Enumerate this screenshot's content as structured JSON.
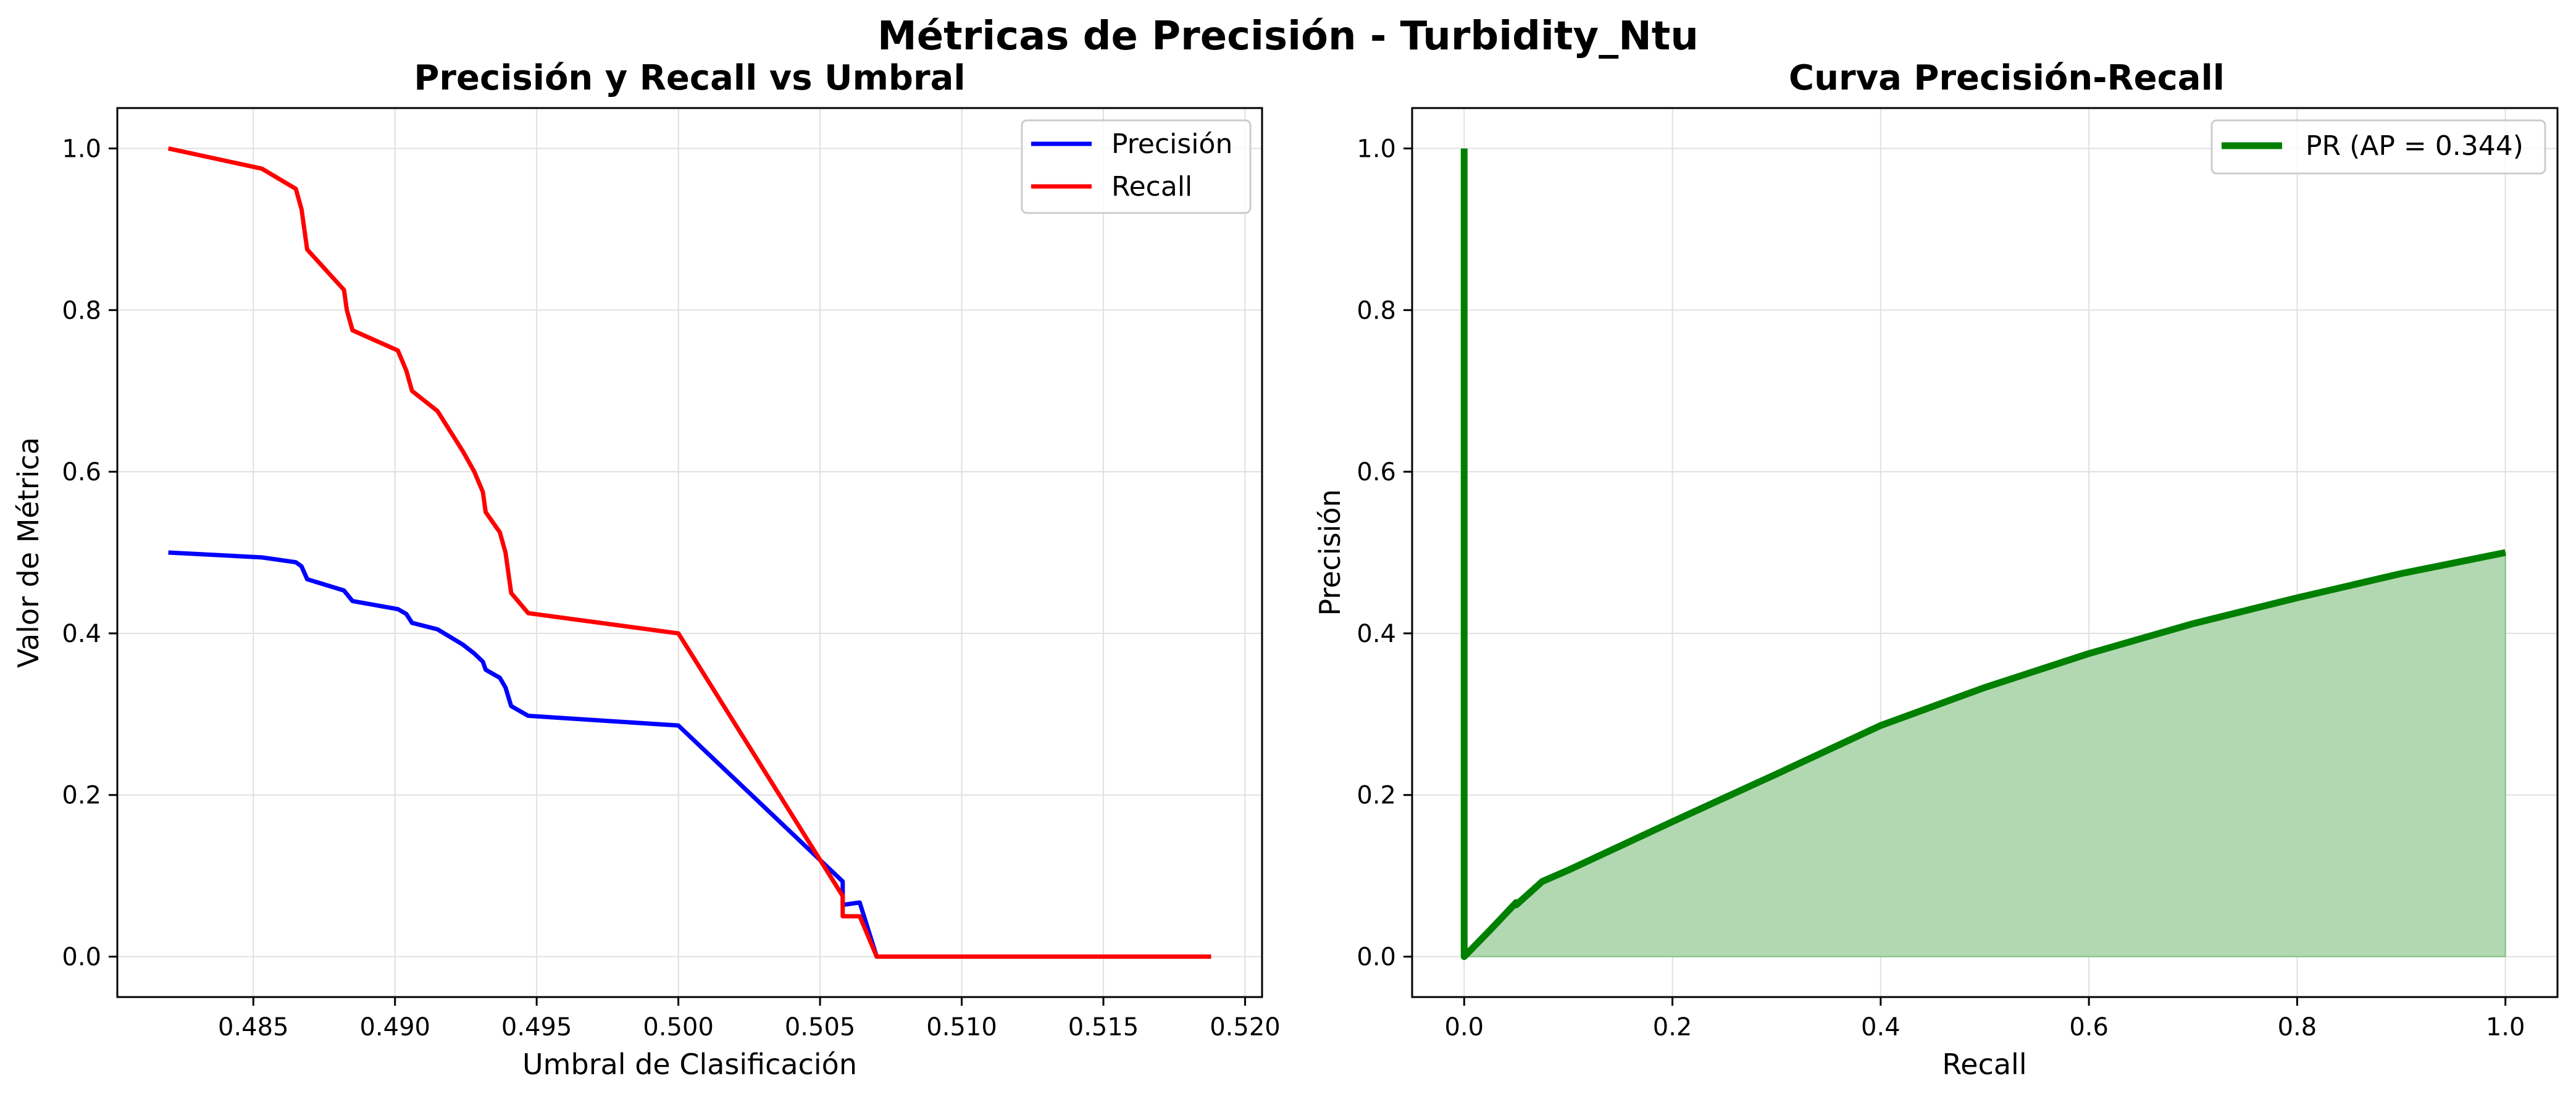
{
  "title": "Métricas de Precisión - Turbidity_Ntu",
  "chart_data": [
    {
      "type": "line",
      "title": "Precisión y Recall vs Umbral",
      "xlabel": "Umbral de Clasificación",
      "ylabel": "Valor de Métrica",
      "xlim": [
        0.4802,
        0.5206
      ],
      "ylim": [
        -0.05,
        1.05
      ],
      "xticks": [
        0.485,
        0.49,
        0.495,
        0.5,
        0.505,
        0.51,
        0.515,
        0.52
      ],
      "xtick_labels": [
        "0.485",
        "0.490",
        "0.495",
        "0.500",
        "0.505",
        "0.510",
        "0.515",
        "0.520"
      ],
      "yticks": [
        0.0,
        0.2,
        0.4,
        0.6,
        0.8,
        1.0
      ],
      "ytick_labels": [
        "0.0",
        "0.2",
        "0.4",
        "0.6",
        "0.8",
        "1.0"
      ],
      "grid": true,
      "legend": "top-right",
      "series": [
        {
          "name": "Precisión",
          "color": "#0000ff",
          "points": [
            [
              0.482,
              0.5
            ],
            [
              0.4853,
              0.494
            ],
            [
              0.4865,
              0.488
            ],
            [
              0.4867,
              0.483
            ],
            [
              0.4869,
              0.467
            ],
            [
              0.4882,
              0.453
            ],
            [
              0.4885,
              0.44
            ],
            [
              0.4901,
              0.43
            ],
            [
              0.4904,
              0.424
            ],
            [
              0.4906,
              0.413
            ],
            [
              0.4915,
              0.405
            ],
            [
              0.4924,
              0.386
            ],
            [
              0.4928,
              0.375
            ],
            [
              0.4931,
              0.365
            ],
            [
              0.4932,
              0.355
            ],
            [
              0.4937,
              0.345
            ],
            [
              0.4939,
              0.333
            ],
            [
              0.4941,
              0.31
            ],
            [
              0.4947,
              0.298
            ],
            [
              0.5,
              0.286
            ],
            [
              0.5058,
              0.093
            ],
            [
              0.5058,
              0.064
            ],
            [
              0.5064,
              0.067
            ],
            [
              0.507,
              0.0
            ],
            [
              0.5188,
              0.0
            ]
          ]
        },
        {
          "name": "Recall",
          "color": "#ff0000",
          "points": [
            [
              0.482,
              1.0
            ],
            [
              0.4853,
              0.975
            ],
            [
              0.4865,
              0.95
            ],
            [
              0.4867,
              0.925
            ],
            [
              0.4869,
              0.875
            ],
            [
              0.4882,
              0.825
            ],
            [
              0.4883,
              0.8
            ],
            [
              0.4885,
              0.775
            ],
            [
              0.4901,
              0.75
            ],
            [
              0.4904,
              0.725
            ],
            [
              0.4906,
              0.7
            ],
            [
              0.4915,
              0.675
            ],
            [
              0.4924,
              0.625
            ],
            [
              0.4928,
              0.6
            ],
            [
              0.4931,
              0.575
            ],
            [
              0.4932,
              0.55
            ],
            [
              0.4937,
              0.525
            ],
            [
              0.4939,
              0.5
            ],
            [
              0.4941,
              0.45
            ],
            [
              0.4947,
              0.425
            ],
            [
              0.5,
              0.4
            ],
            [
              0.5058,
              0.075
            ],
            [
              0.5058,
              0.05
            ],
            [
              0.5064,
              0.05
            ],
            [
              0.507,
              0.0
            ],
            [
              0.5188,
              0.0
            ]
          ]
        }
      ]
    },
    {
      "type": "area",
      "title": "Curva Precisión-Recall",
      "xlabel": "Recall",
      "ylabel": "Precisión",
      "xlim": [
        -0.05,
        1.05
      ],
      "ylim": [
        -0.05,
        1.05
      ],
      "xticks": [
        0.0,
        0.2,
        0.4,
        0.6,
        0.8,
        1.0
      ],
      "xtick_labels": [
        "0.0",
        "0.2",
        "0.4",
        "0.6",
        "0.8",
        "1.0"
      ],
      "yticks": [
        0.0,
        0.2,
        0.4,
        0.6,
        0.8,
        1.0
      ],
      "ytick_labels": [
        "0.0",
        "0.2",
        "0.4",
        "0.6",
        "0.8",
        "1.0"
      ],
      "grid": true,
      "legend": "top-right",
      "fill_color": "#b2d8b2",
      "series": [
        {
          "name": "PR (AP = 0.344)",
          "color": "#008000",
          "points": [
            [
              0.0,
              1.0
            ],
            [
              0.0,
              0.0
            ],
            [
              0.025,
              0.033
            ],
            [
              0.05,
              0.067
            ],
            [
              0.05,
              0.064
            ],
            [
              0.075,
              0.093
            ],
            [
              0.1,
              0.107
            ],
            [
              0.2,
              0.167
            ],
            [
              0.3,
              0.226
            ],
            [
              0.4,
              0.286
            ],
            [
              0.5,
              0.333
            ],
            [
              0.6,
              0.375
            ],
            [
              0.7,
              0.412
            ],
            [
              0.8,
              0.444
            ],
            [
              0.9,
              0.474
            ],
            [
              1.0,
              0.5
            ]
          ]
        }
      ]
    }
  ]
}
